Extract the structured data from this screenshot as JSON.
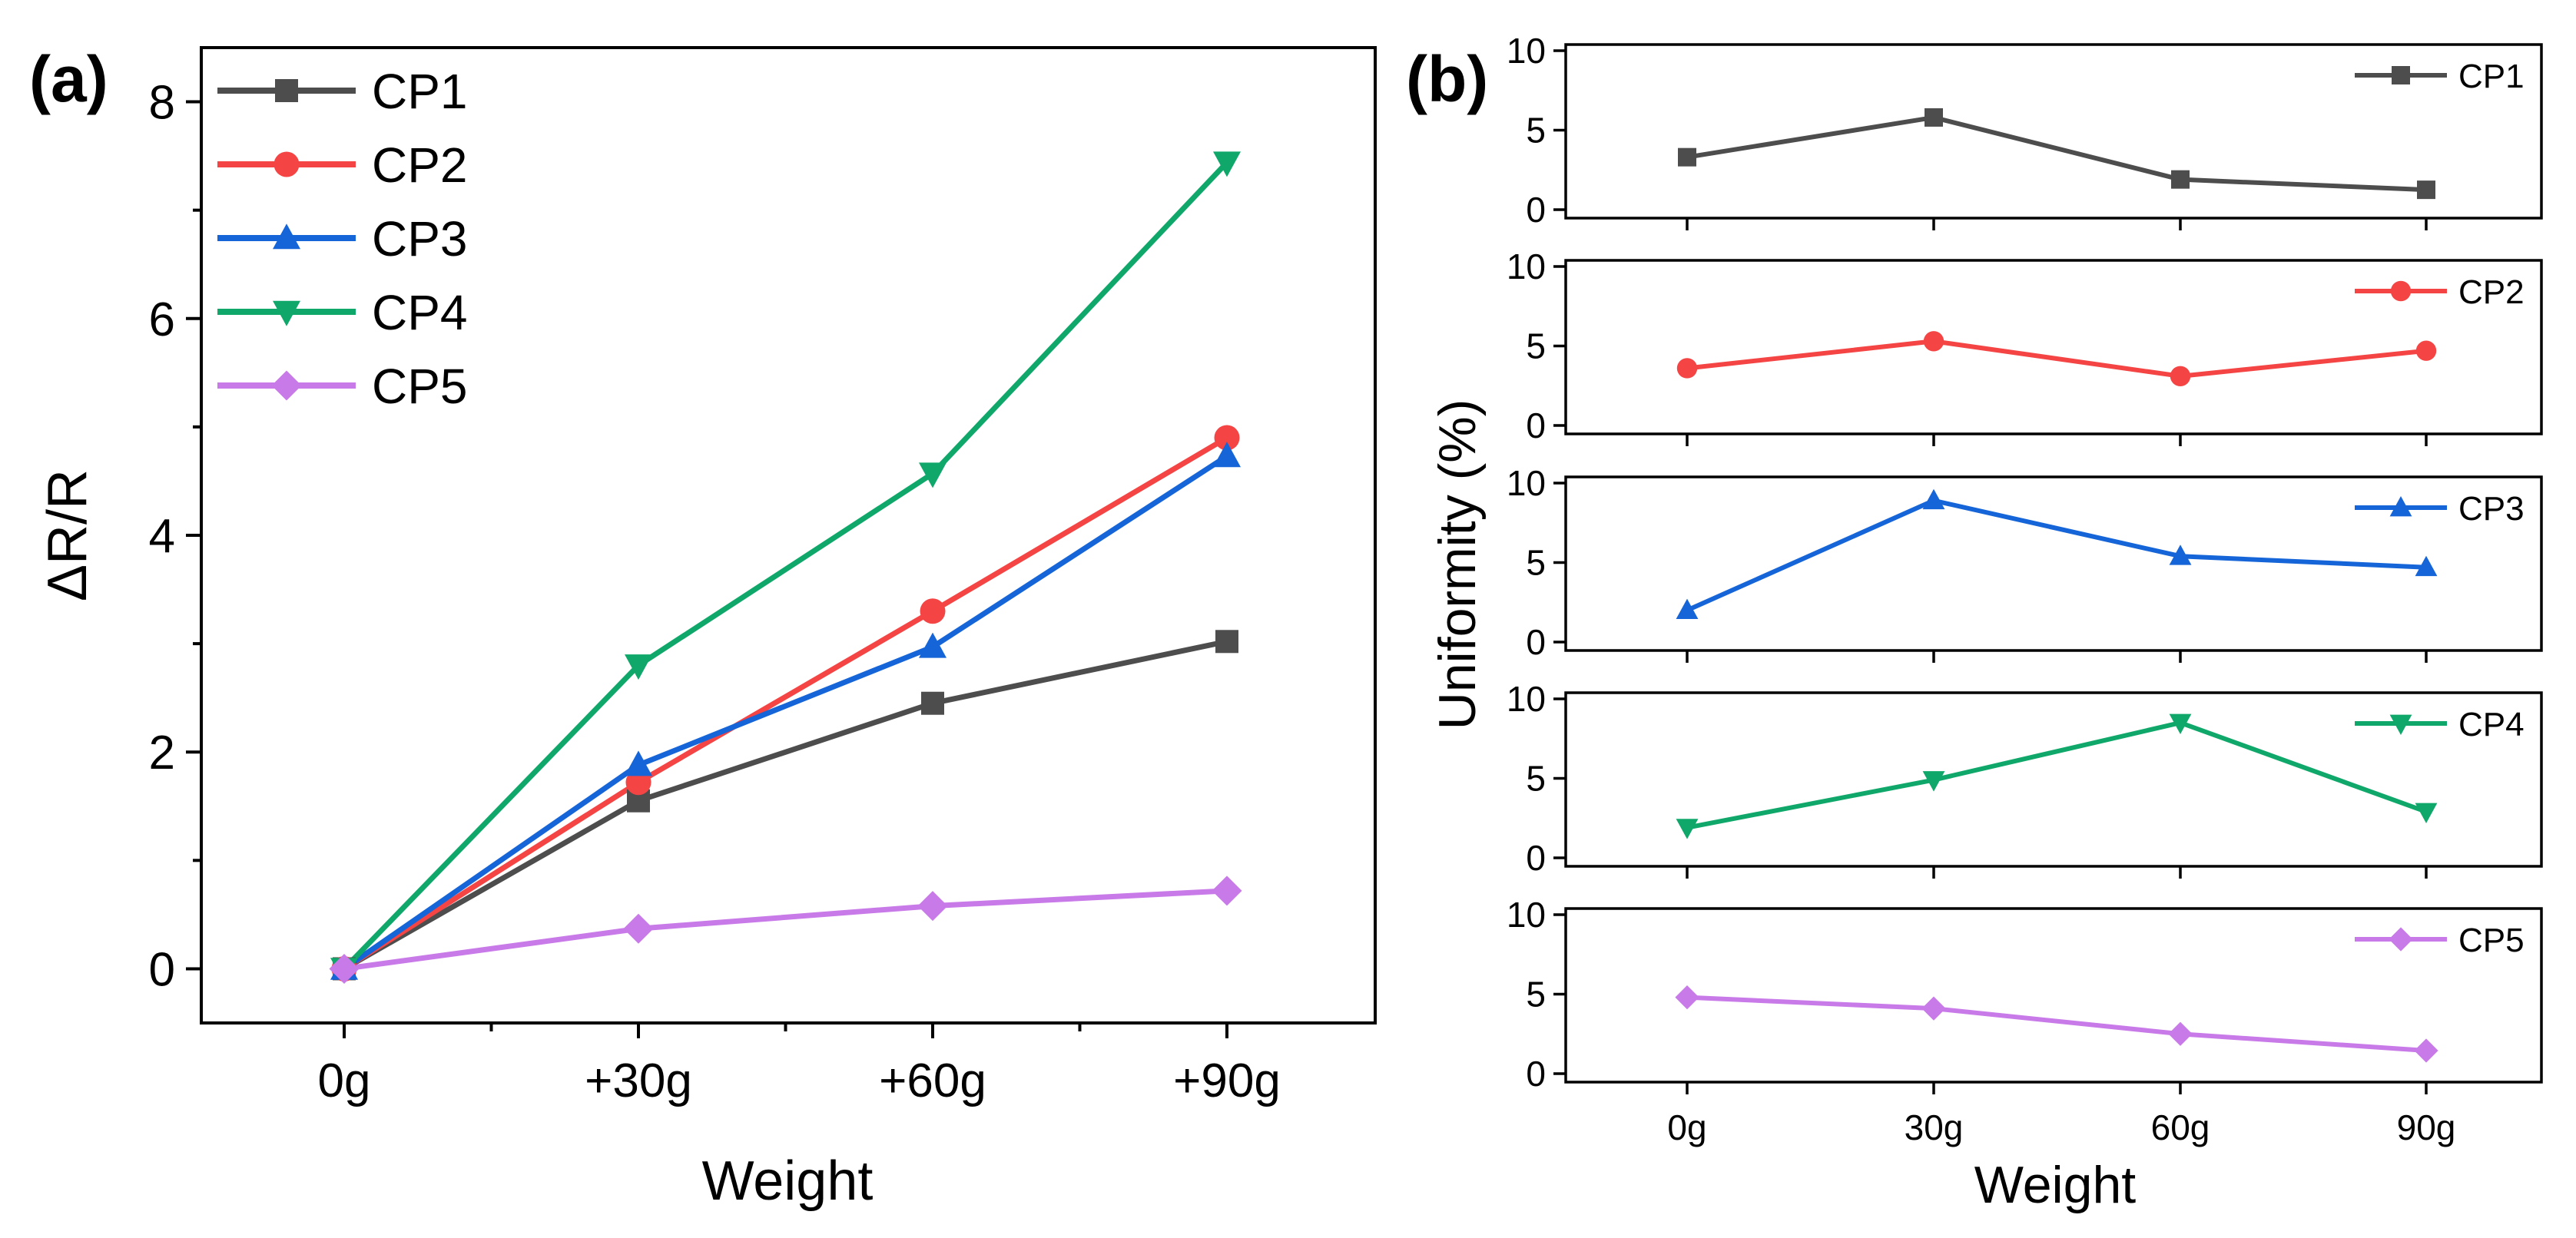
{
  "chart_data": [
    {
      "type": "line",
      "panel_label": "(a)",
      "title": "",
      "xlabel": "Weight",
      "ylabel": "ΔR/R",
      "categories": [
        "0g",
        "+30g",
        "+60g",
        "+90g"
      ],
      "ylim": [
        -0.5,
        8.5
      ],
      "yticks": [
        "0",
        "2",
        "4",
        "6",
        "8"
      ],
      "legend_position": "top-left",
      "series": [
        {
          "name": "CP1",
          "color": "#4d4d4d",
          "marker": "square",
          "values": [
            0,
            1.55,
            2.45,
            3.02
          ]
        },
        {
          "name": "CP2",
          "color": "#f44444",
          "marker": "circle",
          "values": [
            0,
            1.72,
            3.3,
            4.9
          ]
        },
        {
          "name": "CP3",
          "color": "#1565d8",
          "marker": "triangle-up",
          "values": [
            0,
            1.88,
            2.97,
            4.73
          ]
        },
        {
          "name": "CP4",
          "color": "#0fa86a",
          "marker": "triangle-down",
          "values": [
            0,
            2.8,
            4.57,
            7.44
          ]
        },
        {
          "name": "CP5",
          "color": "#c87ae8",
          "marker": "diamond",
          "values": [
            0,
            0.37,
            0.58,
            0.72
          ]
        }
      ]
    },
    {
      "type": "line",
      "panel_label": "(b)",
      "title": "",
      "xlabel": "Weight",
      "ylabel": "Uniformity (%)",
      "categories": [
        "0g",
        "30g",
        "60g",
        "90g"
      ],
      "ylim": [
        0,
        10
      ],
      "yticks": [
        "0",
        "5",
        "10"
      ],
      "legend_position": "top-right",
      "series": [
        {
          "name": "CP1",
          "color": "#4d4d4d",
          "marker": "square",
          "values": [
            3.3,
            5.8,
            1.9,
            1.25
          ]
        },
        {
          "name": "CP2",
          "color": "#f44444",
          "marker": "circle",
          "values": [
            3.6,
            5.3,
            3.1,
            4.7
          ]
        },
        {
          "name": "CP3",
          "color": "#1565d8",
          "marker": "triangle-up",
          "values": [
            2.0,
            8.9,
            5.4,
            4.7
          ]
        },
        {
          "name": "CP4",
          "color": "#0fa86a",
          "marker": "triangle-down",
          "values": [
            1.9,
            4.9,
            8.5,
            2.9
          ]
        },
        {
          "name": "CP5",
          "color": "#c87ae8",
          "marker": "diamond",
          "values": [
            4.8,
            4.1,
            2.5,
            1.45
          ]
        }
      ]
    }
  ]
}
